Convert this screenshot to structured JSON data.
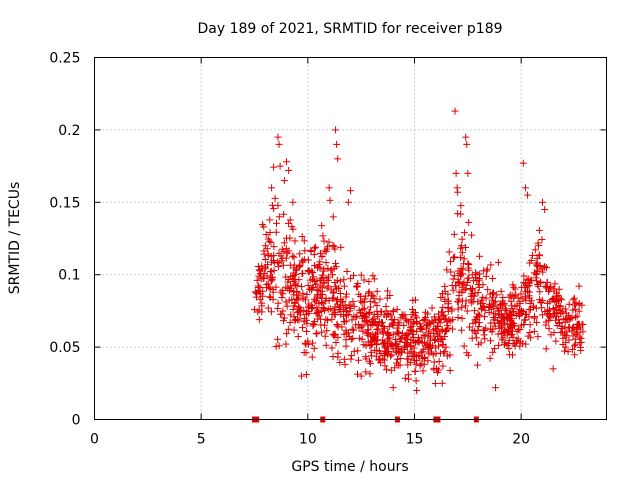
{
  "chart_data": {
    "type": "scatter",
    "title": "Day 189 of 2021, SRMTID for receiver p189",
    "xlabel": "GPS time / hours",
    "ylabel": "SRMTID / TECUs",
    "xlim": [
      0,
      24
    ],
    "ylim": [
      0,
      0.25
    ],
    "xticks": [
      0,
      5,
      10,
      15,
      20
    ],
    "yticks": [
      0,
      0.05,
      0.1,
      0.15,
      0.2,
      0.25
    ],
    "xtick_labels": [
      "0",
      "5",
      "10",
      "15",
      "20"
    ],
    "ytick_labels": [
      "0",
      "0.05",
      "0.1",
      "0.15",
      "0.2",
      "0.25"
    ],
    "grid": true,
    "marker": "+",
    "color": "#e00000",
    "data_span_hours": [
      7.5,
      22.9
    ],
    "gap_markers_hours": [
      7.5,
      7.6,
      10.7,
      14.2,
      16.0,
      16.1,
      17.9
    ],
    "series": [
      {
        "name": "SRMTID",
        "envelope": [
          {
            "x": 7.5,
            "mean": 0.085,
            "spread": 0.015
          },
          {
            "x": 8.0,
            "mean": 0.1,
            "spread": 0.03
          },
          {
            "x": 8.5,
            "mean": 0.11,
            "spread": 0.04
          },
          {
            "x": 9.0,
            "mean": 0.1,
            "spread": 0.04
          },
          {
            "x": 9.5,
            "mean": 0.085,
            "spread": 0.03
          },
          {
            "x": 10.0,
            "mean": 0.08,
            "spread": 0.03
          },
          {
            "x": 10.5,
            "mean": 0.09,
            "spread": 0.03
          },
          {
            "x": 11.0,
            "mean": 0.095,
            "spread": 0.04
          },
          {
            "x": 11.5,
            "mean": 0.075,
            "spread": 0.03
          },
          {
            "x": 12.0,
            "mean": 0.07,
            "spread": 0.03
          },
          {
            "x": 12.5,
            "mean": 0.065,
            "spread": 0.025
          },
          {
            "x": 13.0,
            "mean": 0.07,
            "spread": 0.025
          },
          {
            "x": 13.5,
            "mean": 0.06,
            "spread": 0.02
          },
          {
            "x": 14.0,
            "mean": 0.06,
            "spread": 0.02
          },
          {
            "x": 14.5,
            "mean": 0.055,
            "spread": 0.02
          },
          {
            "x": 15.0,
            "mean": 0.055,
            "spread": 0.02
          },
          {
            "x": 15.5,
            "mean": 0.055,
            "spread": 0.02
          },
          {
            "x": 16.0,
            "mean": 0.055,
            "spread": 0.02
          },
          {
            "x": 16.5,
            "mean": 0.07,
            "spread": 0.025
          },
          {
            "x": 17.0,
            "mean": 0.105,
            "spread": 0.04
          },
          {
            "x": 17.5,
            "mean": 0.09,
            "spread": 0.035
          },
          {
            "x": 18.0,
            "mean": 0.08,
            "spread": 0.03
          },
          {
            "x": 18.5,
            "mean": 0.075,
            "spread": 0.025
          },
          {
            "x": 19.0,
            "mean": 0.07,
            "spread": 0.02
          },
          {
            "x": 19.5,
            "mean": 0.068,
            "spread": 0.02
          },
          {
            "x": 20.0,
            "mean": 0.07,
            "spread": 0.02
          },
          {
            "x": 20.5,
            "mean": 0.09,
            "spread": 0.03
          },
          {
            "x": 21.0,
            "mean": 0.095,
            "spread": 0.03
          },
          {
            "x": 21.5,
            "mean": 0.075,
            "spread": 0.025
          },
          {
            "x": 22.0,
            "mean": 0.065,
            "spread": 0.02
          },
          {
            "x": 22.5,
            "mean": 0.065,
            "spread": 0.02
          },
          {
            "x": 22.9,
            "mean": 0.065,
            "spread": 0.02
          }
        ],
        "outliers": [
          {
            "x": 8.6,
            "y": 0.195
          },
          {
            "x": 8.65,
            "y": 0.19
          },
          {
            "x": 8.7,
            "y": 0.175
          },
          {
            "x": 9.0,
            "y": 0.178
          },
          {
            "x": 9.1,
            "y": 0.172
          },
          {
            "x": 8.9,
            "y": 0.165
          },
          {
            "x": 8.3,
            "y": 0.16
          },
          {
            "x": 9.3,
            "y": 0.15
          },
          {
            "x": 11.3,
            "y": 0.2
          },
          {
            "x": 11.35,
            "y": 0.19
          },
          {
            "x": 11.4,
            "y": 0.18
          },
          {
            "x": 11.0,
            "y": 0.16
          },
          {
            "x": 12.0,
            "y": 0.158
          },
          {
            "x": 11.9,
            "y": 0.15
          },
          {
            "x": 16.9,
            "y": 0.213
          },
          {
            "x": 17.4,
            "y": 0.195
          },
          {
            "x": 17.45,
            "y": 0.19
          },
          {
            "x": 17.5,
            "y": 0.17
          },
          {
            "x": 16.95,
            "y": 0.17
          },
          {
            "x": 17.0,
            "y": 0.16
          },
          {
            "x": 20.1,
            "y": 0.177
          },
          {
            "x": 20.2,
            "y": 0.16
          },
          {
            "x": 20.3,
            "y": 0.155
          },
          {
            "x": 21.0,
            "y": 0.15
          },
          {
            "x": 21.1,
            "y": 0.145
          },
          {
            "x": 9.7,
            "y": 0.03
          },
          {
            "x": 12.5,
            "y": 0.03
          },
          {
            "x": 14.0,
            "y": 0.022
          },
          {
            "x": 15.1,
            "y": 0.02
          },
          {
            "x": 16.3,
            "y": 0.025
          },
          {
            "x": 18.8,
            "y": 0.022
          },
          {
            "x": 21.5,
            "y": 0.035
          }
        ],
        "seed": 189,
        "count": 1400
      }
    ]
  }
}
